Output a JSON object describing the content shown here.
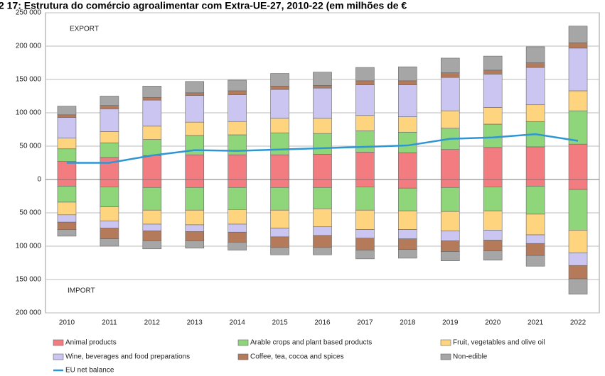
{
  "chart_data": {
    "type": "bar",
    "stacked": true,
    "title": "2 17: Estrutura do comércio agroalimentar com Extra-UE-27, 2010-22 (em milhões de €",
    "annotations": [
      "EXPORT",
      "IMPORT"
    ],
    "categories": [
      "2010",
      "2011",
      "2012",
      "2013",
      "2014",
      "2015",
      "2016",
      "2017",
      "2018",
      "2019",
      "2020",
      "2021",
      "2022"
    ],
    "ylim": [
      -200000,
      250000
    ],
    "yticks": [
      {
        "value": 250000,
        "label": "250 000"
      },
      {
        "value": 200000,
        "label": "200 000"
      },
      {
        "value": 150000,
        "label": "150 000"
      },
      {
        "value": 100000,
        "label": "100 000"
      },
      {
        "value": 50000,
        "label": "50 000"
      },
      0,
      {
        "value": -50000,
        "label": "50 000"
      },
      {
        "value": -100000,
        "label": "100 000"
      },
      {
        "value": -150000,
        "label": "150 000"
      },
      {
        "value": -200000,
        "label": "200 000"
      }
    ],
    "grid": true,
    "legend": "bottom",
    "series": [
      {
        "name": "Animal products",
        "color": "#f27c7f",
        "values": [
          27000,
          33000,
          36000,
          37000,
          37000,
          37000,
          38000,
          41000,
          40000,
          45000,
          48000,
          49000,
          53000
        ],
        "import_values": [
          -10000,
          -11000,
          -12000,
          -12000,
          -12000,
          -12000,
          -12000,
          -11000,
          -13000,
          -12000,
          -11000,
          -10000,
          -15000
        ]
      },
      {
        "name": "Arable crops and plant based products",
        "color": "#8fd67a",
        "values": [
          19000,
          22000,
          24000,
          29000,
          30000,
          33000,
          31000,
          32000,
          31000,
          32000,
          35000,
          38000,
          50000
        ],
        "import_values": [
          -24000,
          -30000,
          -34000,
          -34000,
          -33000,
          -34000,
          -32000,
          -35000,
          -34000,
          -36000,
          -36000,
          -42000,
          -61000
        ]
      },
      {
        "name": "Fruit, vegetables and olive oil",
        "color": "#ffd47f",
        "values": [
          16000,
          17000,
          20000,
          20000,
          20000,
          22000,
          23000,
          23000,
          23000,
          26000,
          25000,
          25000,
          30000
        ],
        "import_values": [
          -19000,
          -21000,
          -21000,
          -22000,
          -22000,
          -27000,
          -27000,
          -29000,
          -28000,
          -29000,
          -29000,
          -31000,
          -34000
        ]
      },
      {
        "name": "Wine, beverages and food preparations",
        "color": "#cbc5f2",
        "values": [
          31000,
          34000,
          39000,
          40000,
          40000,
          43000,
          45000,
          46000,
          48000,
          50000,
          50000,
          56000,
          64000
        ],
        "import_values": [
          -11000,
          -11000,
          -10000,
          -10000,
          -12000,
          -13000,
          -13000,
          -13000,
          -14000,
          -15000,
          -15000,
          -13000,
          -19000
        ]
      },
      {
        "name": "Coffee, tea, cocoa and spices",
        "color": "#b47a5a",
        "values": [
          4000,
          5000,
          4000,
          4000,
          6000,
          5000,
          4000,
          6000,
          6000,
          7000,
          6000,
          7000,
          8000
        ],
        "import_values": [
          -11000,
          -16000,
          -15000,
          -14000,
          -15000,
          -16000,
          -18000,
          -18000,
          -16000,
          -16000,
          -16000,
          -18000,
          -20000
        ]
      },
      {
        "name": "Non-edible",
        "color": "#a6a6a6",
        "values": [
          13000,
          14000,
          17000,
          17000,
          16000,
          19000,
          20000,
          20000,
          21000,
          22000,
          21000,
          24000,
          25000
        ],
        "import_values": [
          -10000,
          -11000,
          -12000,
          -11000,
          -12000,
          -11000,
          -11000,
          -13000,
          -13000,
          -14000,
          -14000,
          -16000,
          -23000
        ]
      },
      {
        "name": "EU net balance",
        "type": "line",
        "color": "#2f96d4",
        "values": [
          25000,
          25000,
          36000,
          44000,
          43000,
          45000,
          47000,
          49000,
          51000,
          61000,
          63000,
          68000,
          58000
        ]
      }
    ]
  }
}
